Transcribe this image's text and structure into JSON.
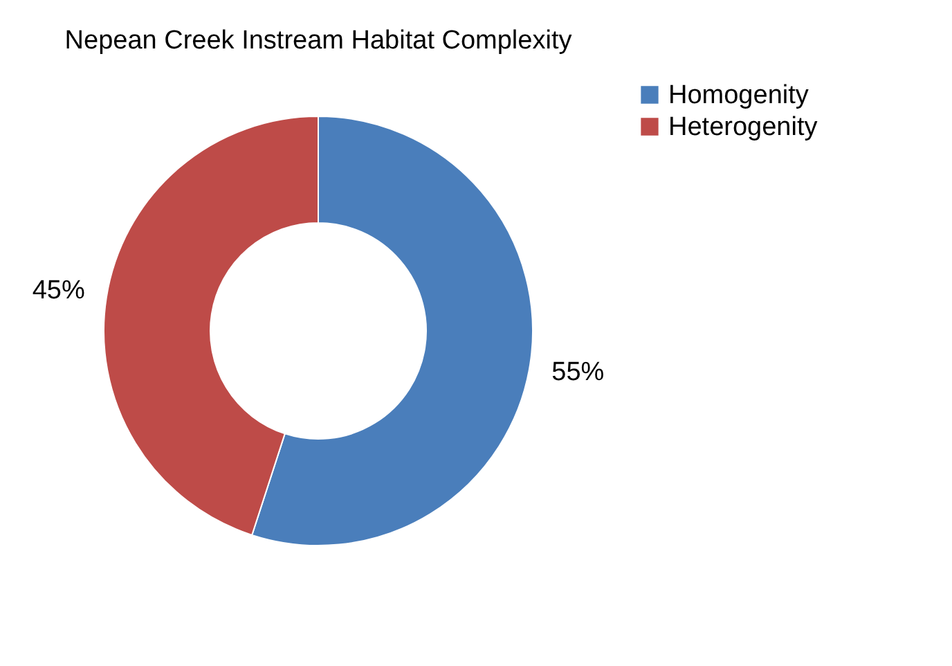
{
  "chart_data": {
    "type": "donut",
    "title": "Nepean Creek Instream Habitat Complexity",
    "categories": [
      "Homogenity",
      "Heterogenity"
    ],
    "values": [
      55,
      45
    ],
    "colors": [
      "#4a7ebb",
      "#be4b48"
    ],
    "value_labels": [
      "55%",
      "45%"
    ],
    "legend": "right"
  }
}
